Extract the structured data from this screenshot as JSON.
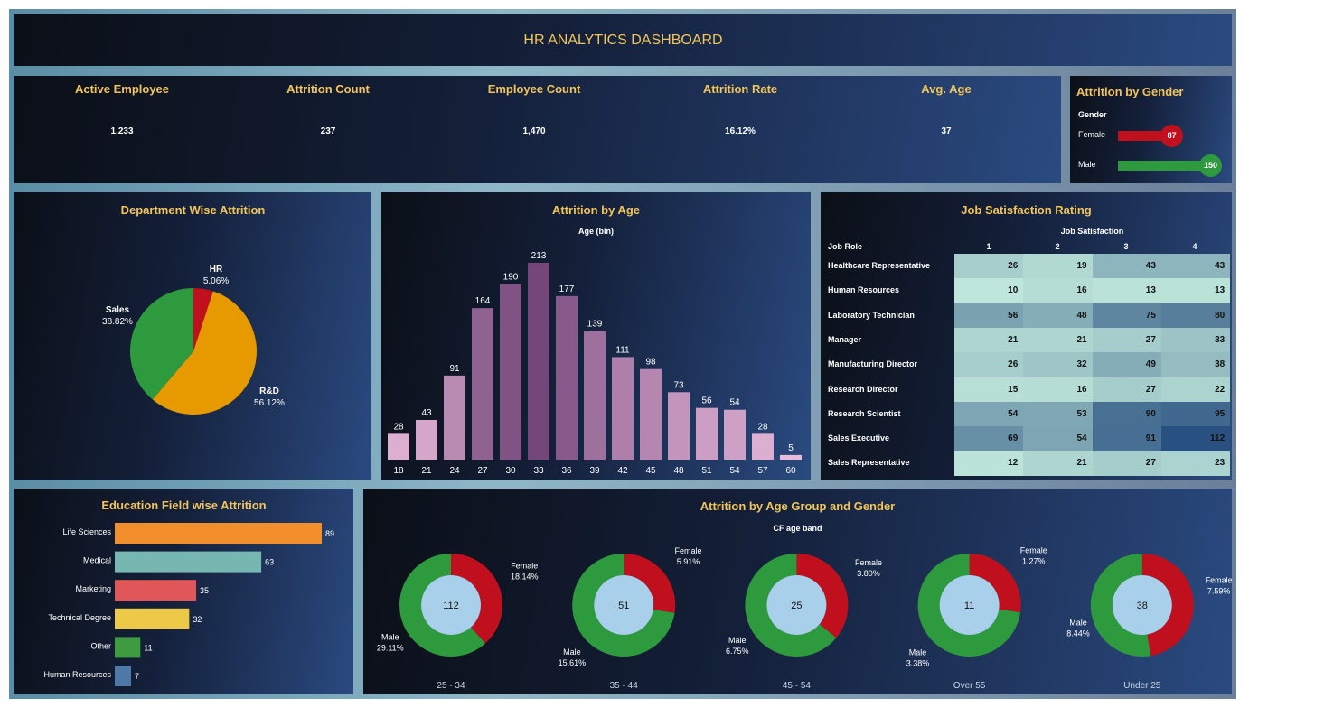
{
  "title": "HR ANALYTICS DASHBOARD",
  "kpis": [
    {
      "label": "Active Employee",
      "value": "1,233"
    },
    {
      "label": "Attrition Count",
      "value": "237"
    },
    {
      "label": "Employee Count",
      "value": "1,470"
    },
    {
      "label": "Attrition Rate",
      "value": "16.12%"
    },
    {
      "label": "Avg. Age",
      "value": "37"
    }
  ],
  "gender": {
    "title": "Attrition by Gender",
    "header": "Gender",
    "rows": [
      {
        "label": "Female",
        "value": 87,
        "color": "#c0101e"
      },
      {
        "label": "Male",
        "value": 150,
        "color": "#2e9a3e"
      }
    ]
  },
  "department": {
    "title": "Department Wise Attrition",
    "slices": [
      {
        "label": "HR",
        "pct": "5.06%",
        "value": 5.06,
        "color": "#c0101e"
      },
      {
        "label": "R&D",
        "pct": "56.12%",
        "value": 56.12,
        "color": "#e69a00"
      },
      {
        "label": "Sales",
        "pct": "38.82%",
        "value": 38.82,
        "color": "#2e9a3e"
      }
    ]
  },
  "chart_data": {
    "type": "bar",
    "title": "Attrition by Age",
    "xlabel": "Age (bin)",
    "categories": [
      "18",
      "21",
      "24",
      "27",
      "30",
      "33",
      "36",
      "39",
      "42",
      "45",
      "48",
      "51",
      "54",
      "57",
      "60"
    ],
    "values": [
      28,
      43,
      91,
      164,
      190,
      213,
      177,
      139,
      111,
      98,
      73,
      56,
      54,
      28,
      5
    ]
  },
  "job": {
    "title": "Job Satisfaction Rating",
    "col_header": "Job Satisfaction",
    "row_header": "Job Role",
    "columns": [
      "1",
      "2",
      "3",
      "4"
    ],
    "rows": [
      {
        "role": "Healthcare Representative",
        "v": [
          26,
          19,
          43,
          43
        ]
      },
      {
        "role": "Human Resources",
        "v": [
          10,
          16,
          13,
          13
        ]
      },
      {
        "role": "Laboratory Technician",
        "v": [
          56,
          48,
          75,
          80
        ]
      },
      {
        "role": "Manager",
        "v": [
          21,
          21,
          27,
          33
        ]
      },
      {
        "role": "Manufacturing Director",
        "v": [
          26,
          32,
          49,
          38
        ]
      },
      {
        "role": "Research Director",
        "v": [
          15,
          16,
          27,
          22
        ]
      },
      {
        "role": "Research Scientist",
        "v": [
          54,
          53,
          90,
          95
        ]
      },
      {
        "role": "Sales Executive",
        "v": [
          69,
          54,
          91,
          112
        ]
      },
      {
        "role": "Sales Representative",
        "v": [
          12,
          21,
          27,
          23
        ]
      }
    ]
  },
  "education": {
    "title": "Education Field wise Attrition",
    "items": [
      {
        "label": "Life Sciences",
        "value": 89,
        "color": "#f28e2b"
      },
      {
        "label": "Medical",
        "value": 63,
        "color": "#76b7b2"
      },
      {
        "label": "Marketing",
        "value": 35,
        "color": "#e15759"
      },
      {
        "label": "Technical Degree",
        "value": 32,
        "color": "#edc948"
      },
      {
        "label": "Other",
        "value": 11,
        "color": "#3f9b3f"
      },
      {
        "label": "Human Resources",
        "value": 7,
        "color": "#4e79a7"
      }
    ]
  },
  "agegender": {
    "title": "Attrition by Age Group and Gender",
    "header": "CF age band",
    "groups": [
      {
        "band": "25 - 34",
        "total": "112",
        "female": "18.14%",
        "male": "29.11%",
        "f": 18.14,
        "m": 29.11
      },
      {
        "band": "35 - 44",
        "total": "51",
        "female": "5.91%",
        "male": "15.61%",
        "f": 5.91,
        "m": 15.61
      },
      {
        "band": "45 - 54",
        "total": "25",
        "female": "3.80%",
        "male": "6.75%",
        "f": 3.8,
        "m": 6.75
      },
      {
        "band": "Over 55",
        "total": "11",
        "female": "1.27%",
        "male": "3.38%",
        "f": 1.27,
        "m": 3.38
      },
      {
        "band": "Under 25",
        "total": "38",
        "female": "7.59%",
        "male": "8.44%",
        "f": 7.59,
        "m": 8.44
      }
    ],
    "female_label": "Female",
    "male_label": "Male"
  }
}
